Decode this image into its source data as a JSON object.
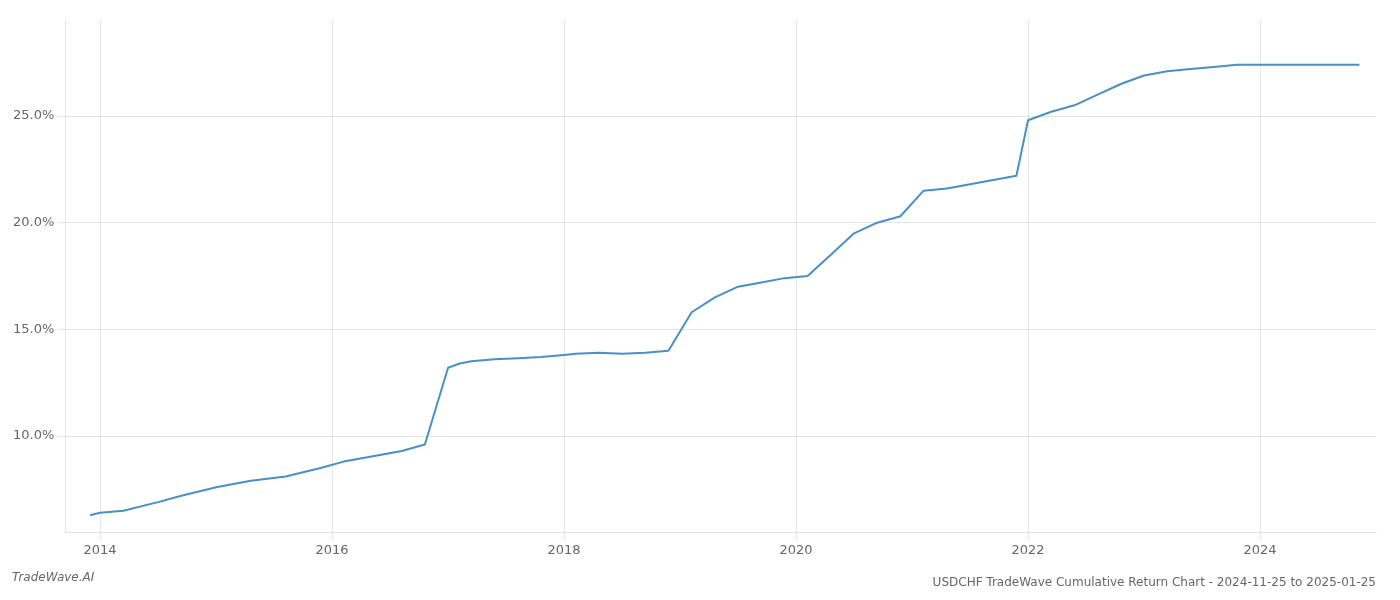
{
  "chart_data": {
    "type": "line",
    "title": "USDCHF TradeWave Cumulative Return Chart - 2024-11-25 to 2025-01-25",
    "annotations": [
      "TradeWave.AI"
    ],
    "x": [
      2013.92,
      2014.0,
      2014.2,
      2014.5,
      2014.7,
      2015.0,
      2015.3,
      2015.6,
      2015.9,
      2016.1,
      2016.4,
      2016.6,
      2016.8,
      2017.0,
      2017.1,
      2017.2,
      2017.4,
      2017.6,
      2017.8,
      2018.0,
      2018.1,
      2018.3,
      2018.5,
      2018.7,
      2018.9,
      2019.1,
      2019.3,
      2019.5,
      2019.7,
      2019.9,
      2020.1,
      2020.3,
      2020.5,
      2020.7,
      2020.9,
      2021.1,
      2021.3,
      2021.5,
      2021.7,
      2021.9,
      2022.0,
      2022.2,
      2022.4,
      2022.6,
      2022.8,
      2023.0,
      2023.2,
      2023.4,
      2023.6,
      2023.8,
      2024.0,
      2024.2,
      2024.5,
      2024.85
    ],
    "values": [
      6.3,
      6.4,
      6.5,
      6.9,
      7.2,
      7.6,
      7.9,
      8.1,
      8.5,
      8.8,
      9.1,
      9.3,
      9.6,
      13.2,
      13.4,
      13.5,
      13.6,
      13.65,
      13.7,
      13.8,
      13.85,
      13.9,
      13.85,
      13.9,
      14.0,
      15.8,
      16.5,
      17.0,
      17.2,
      17.4,
      17.5,
      18.5,
      19.5,
      20.0,
      20.3,
      21.5,
      21.6,
      21.8,
      22.0,
      22.2,
      24.8,
      25.2,
      25.5,
      26.0,
      26.5,
      26.9,
      27.1,
      27.2,
      27.3,
      27.4,
      27.4,
      27.4,
      27.4,
      27.4
    ],
    "color": "#4a90c4",
    "xlim": [
      2013.7,
      2025.0
    ],
    "xticks": [
      2014,
      2016,
      2018,
      2020,
      2022,
      2024
    ],
    "ylim": [
      5.5,
      29.5
    ],
    "yticks": [
      {
        "value": 10.0,
        "label": "10.0%"
      },
      {
        "value": 15.0,
        "label": "15.0%"
      },
      {
        "value": 20.0,
        "label": "20.0%"
      },
      {
        "value": 25.0,
        "label": "25.0%"
      }
    ],
    "grid": true
  }
}
